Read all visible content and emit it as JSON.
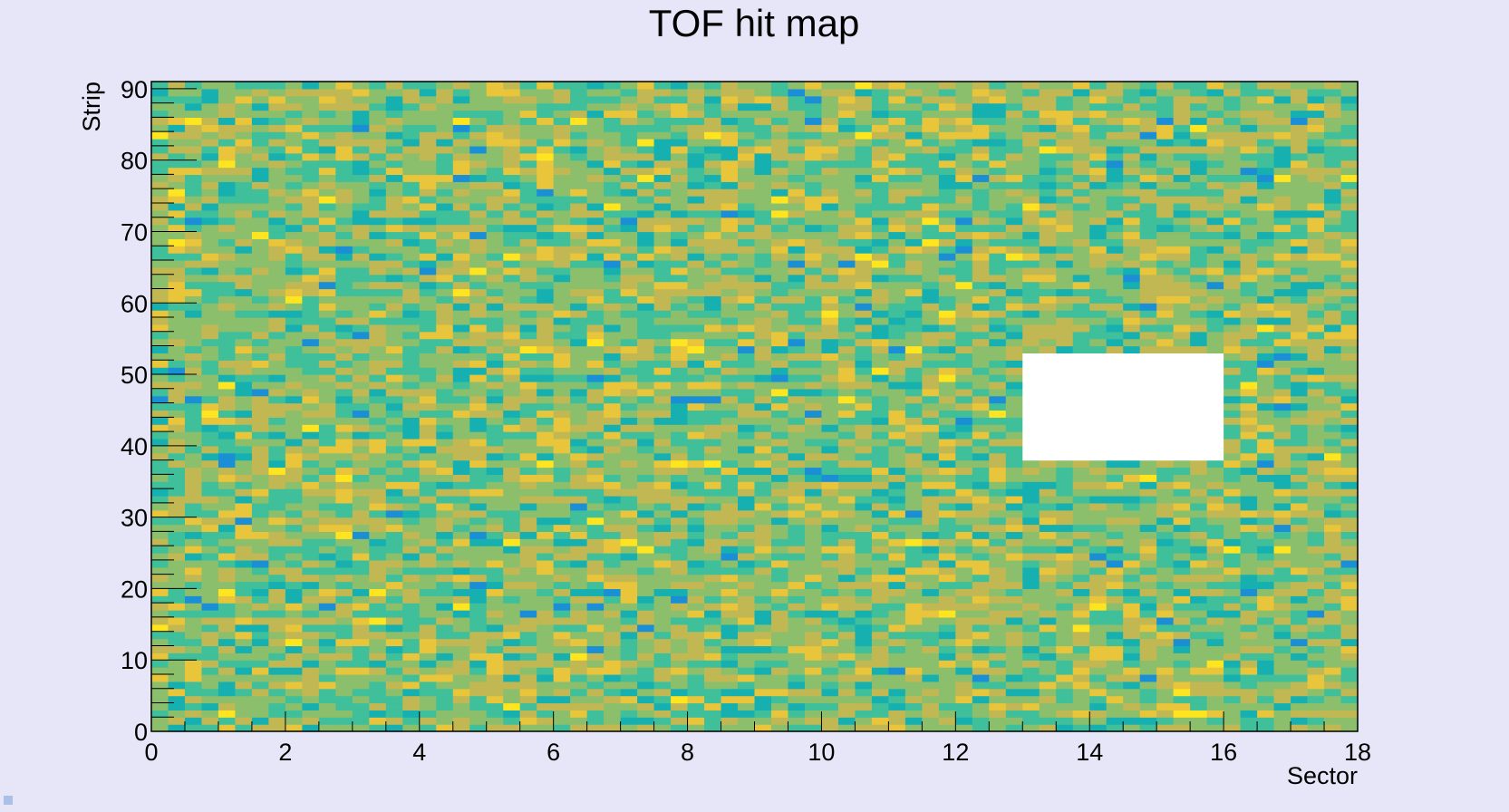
{
  "chart_data": {
    "type": "heatmap",
    "title": "TOF hit map",
    "xlabel": "Sector",
    "ylabel": "Strip",
    "xlim": [
      0,
      18
    ],
    "ylim": [
      0,
      91
    ],
    "x_bins": 72,
    "y_bins": 91,
    "x_tick_labels": [
      "0",
      "2",
      "4",
      "6",
      "8",
      "10",
      "12",
      "14",
      "16",
      "18"
    ],
    "y_tick_labels": [
      "0",
      "10",
      "20",
      "30",
      "40",
      "50",
      "60",
      "70",
      "80",
      "90"
    ],
    "value_range": [
      0.0,
      1.0
    ],
    "distribution": "approximately uniform hit counts across all sectors and strips with random fluctuation",
    "empty_region": {
      "x": [
        13,
        16
      ],
      "y": [
        38,
        53
      ]
    },
    "palette": [
      "#1a8fd6",
      "#17b0b0",
      "#3fbf9a",
      "#8cbf6c",
      "#c2b853",
      "#e8c53a",
      "#ffe51f"
    ],
    "grid": false
  },
  "colors": {
    "background": "#e6e6f8",
    "plot_frame": "#000000",
    "empty_bin": "#ffffff"
  }
}
